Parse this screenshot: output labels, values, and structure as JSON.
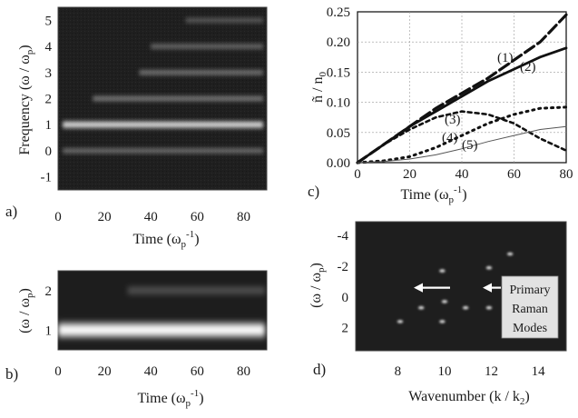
{
  "panel_labels": {
    "a": "a)",
    "b": "b)",
    "c": "c)",
    "d": "d)"
  },
  "panel_a": {
    "ylabel": "Frequency  (ω / ω",
    "ylabel_sub": "p",
    "ylabel_close": ")",
    "xlabel": "Time (ω",
    "xlabel_sub": "p",
    "xlabel_sup": "-1",
    "xlabel_close": ")",
    "xticks": [
      "0",
      "20",
      "40",
      "60",
      "80"
    ],
    "yticks": [
      "5",
      "4",
      "3",
      "2",
      "1",
      "0",
      "-1"
    ]
  },
  "panel_b": {
    "ylabel": "(ω / ω",
    "ylabel_sub": "p",
    "ylabel_close": ")",
    "xlabel": "Time (ω",
    "xlabel_sub": "p",
    "xlabel_sup": "-1",
    "xlabel_close": ")",
    "xticks": [
      "0",
      "20",
      "40",
      "60",
      "80"
    ],
    "yticks": [
      "2",
      "1"
    ]
  },
  "panel_c": {
    "ylabel": "ñ / n",
    "ylabel_sub": "0",
    "xlabel": "Time  (ω",
    "xlabel_sub": "p",
    "xlabel_sup": "-1",
    "xlabel_close": ")",
    "xticks": [
      "0",
      "20",
      "40",
      "60",
      "80"
    ],
    "yticks": [
      "0.25",
      "0.20",
      "0.15",
      "0.10",
      "0.05",
      "0.00"
    ],
    "curve_labels": [
      "(1)",
      "(2)",
      "(3)",
      "(4)",
      "(5)"
    ]
  },
  "panel_d": {
    "ylabel": "(ω / ω",
    "ylabel_sub": "p",
    "ylabel_close": ")",
    "xlabel": "Wavenumber  (k / k",
    "xlabel_sub": "2",
    "xlabel_close": ")",
    "xticks": [
      "8",
      "10",
      "12",
      "14"
    ],
    "yticks": [
      "-4",
      "-2",
      "0",
      "2"
    ],
    "annotation": [
      "Primary",
      "Raman",
      "Modes"
    ]
  },
  "chart_data": [
    {
      "type": "heatmap",
      "x_range": [
        0,
        90
      ],
      "y_range": [
        -1.5,
        5.5
      ],
      "bands_y": [
        5,
        4,
        3,
        2,
        1,
        0
      ],
      "band_brightness": [
        0.3,
        0.45,
        0.55,
        0.6,
        0.95,
        0.5
      ]
    },
    {
      "type": "heatmap",
      "x_range": [
        0,
        90
      ],
      "y_range": [
        0.5,
        2.5
      ],
      "bands_y": [
        2,
        1
      ],
      "band_brightness": [
        0.45,
        1.0
      ]
    },
    {
      "type": "line",
      "xlim": [
        0,
        80
      ],
      "ylim": [
        0,
        0.25
      ],
      "grid": true,
      "series": [
        {
          "name": "(1)",
          "x": [
            0,
            10,
            20,
            30,
            40,
            50,
            60,
            70,
            80
          ],
          "y": [
            0,
            0.03,
            0.06,
            0.09,
            0.115,
            0.14,
            0.17,
            0.2,
            0.245
          ]
        },
        {
          "name": "(2)",
          "x": [
            0,
            10,
            20,
            30,
            40,
            50,
            60,
            70,
            80
          ],
          "y": [
            0,
            0.03,
            0.06,
            0.085,
            0.11,
            0.135,
            0.155,
            0.175,
            0.19
          ]
        },
        {
          "name": "(3)",
          "x": [
            0,
            10,
            20,
            30,
            40,
            50,
            60,
            70,
            80
          ],
          "y": [
            0,
            0.03,
            0.055,
            0.075,
            0.085,
            0.08,
            0.065,
            0.04,
            0.02
          ]
        },
        {
          "name": "(4)",
          "x": [
            0,
            10,
            20,
            30,
            40,
            50,
            60,
            70,
            80
          ],
          "y": [
            0,
            0.003,
            0.01,
            0.025,
            0.045,
            0.065,
            0.08,
            0.09,
            0.092
          ]
        },
        {
          "name": "(5)",
          "x": [
            0,
            10,
            20,
            30,
            40,
            50,
            60,
            70,
            80
          ],
          "y": [
            0,
            0.002,
            0.006,
            0.013,
            0.023,
            0.035,
            0.045,
            0.055,
            0.06
          ]
        }
      ]
    },
    {
      "type": "scatter",
      "xlim": [
        6.2,
        15.2
      ],
      "ylim": [
        3.5,
        -4.9
      ],
      "points": [
        {
          "x": 9,
          "y": 0.7
        },
        {
          "x": 10.9,
          "y": 0.7
        },
        {
          "x": 8.1,
          "y": 1.6
        },
        {
          "x": 9.9,
          "y": 1.6
        },
        {
          "x": 9.9,
          "y": -1.7
        },
        {
          "x": 11.9,
          "y": -1.9
        },
        {
          "x": 12.8,
          "y": -2.8
        },
        {
          "x": 11.9,
          "y": 0.7
        },
        {
          "x": 10.0,
          "y": 0.3
        }
      ]
    }
  ]
}
